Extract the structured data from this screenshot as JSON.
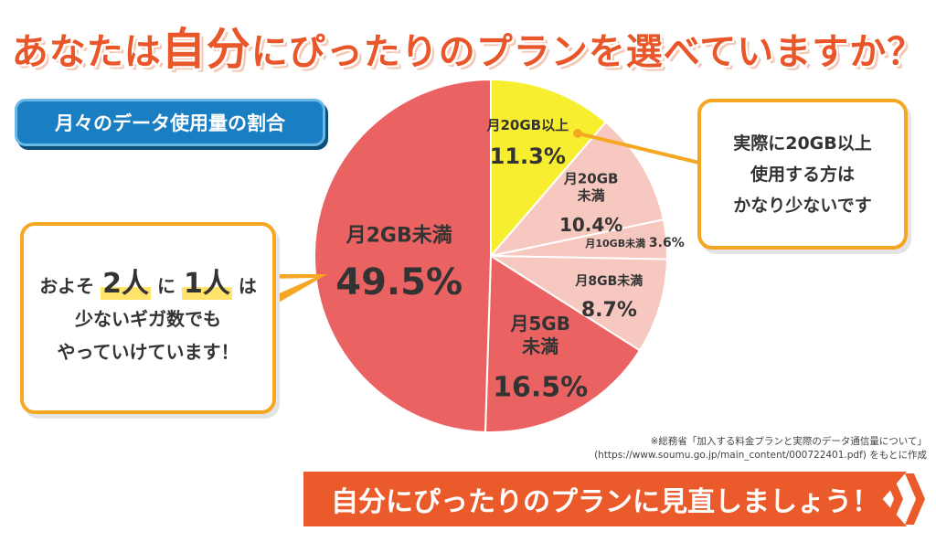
{
  "headline": {
    "part1": "あなたは",
    "part2": "自分",
    "part3": "にぴったりのプランを選べていますか？"
  },
  "subtitle_pill": "月々のデータ使用量の割合",
  "callout_left": {
    "line1_a": "およそ",
    "line1_num1": "2人",
    "line1_b": "に",
    "line1_num2": "1人",
    "line1_c": "は",
    "line2": "少ないギガ数でも",
    "line3": "やっていけています！"
  },
  "callout_right": {
    "line1": "実際に20GB以上",
    "line2": "使用する方は",
    "line3": "かなり少ないです"
  },
  "source": {
    "line1": "※総務省「加入する料金プランと実際のデータ通信量について」",
    "line2": "(https://www.soumu.go.jp/main_content/000722401.pdf) をもとに作成"
  },
  "banner": "自分にぴったりのプランに見直しましょう！",
  "colors": {
    "accent_orange": "#ea5a2a",
    "callout_border": "#f5a623",
    "pill_blue": "#1a7ec2"
  },
  "chart_data": {
    "type": "pie",
    "title": "月々のデータ使用量の割合",
    "start": "12 o'clock, clockwise",
    "slices": [
      {
        "label": "月20GB以上",
        "value": 11.3,
        "display": "11.3%",
        "color": "#f6ee2e"
      },
      {
        "label": "月20GB未満",
        "value": 10.4,
        "display": "10.4%",
        "color": "#f6c8c0"
      },
      {
        "label": "月10GB未満",
        "value": 3.6,
        "display": "3.6%",
        "color": "#f6c8c0"
      },
      {
        "label": "月8GB未満",
        "value": 8.7,
        "display": "8.7%",
        "color": "#f6c8c0"
      },
      {
        "label": "月5GB未満",
        "value": 16.5,
        "display": "16.5%",
        "color": "#ea6362"
      },
      {
        "label": "月2GB未満",
        "value": 49.5,
        "display": "49.5%",
        "color": "#ea6362"
      }
    ]
  }
}
